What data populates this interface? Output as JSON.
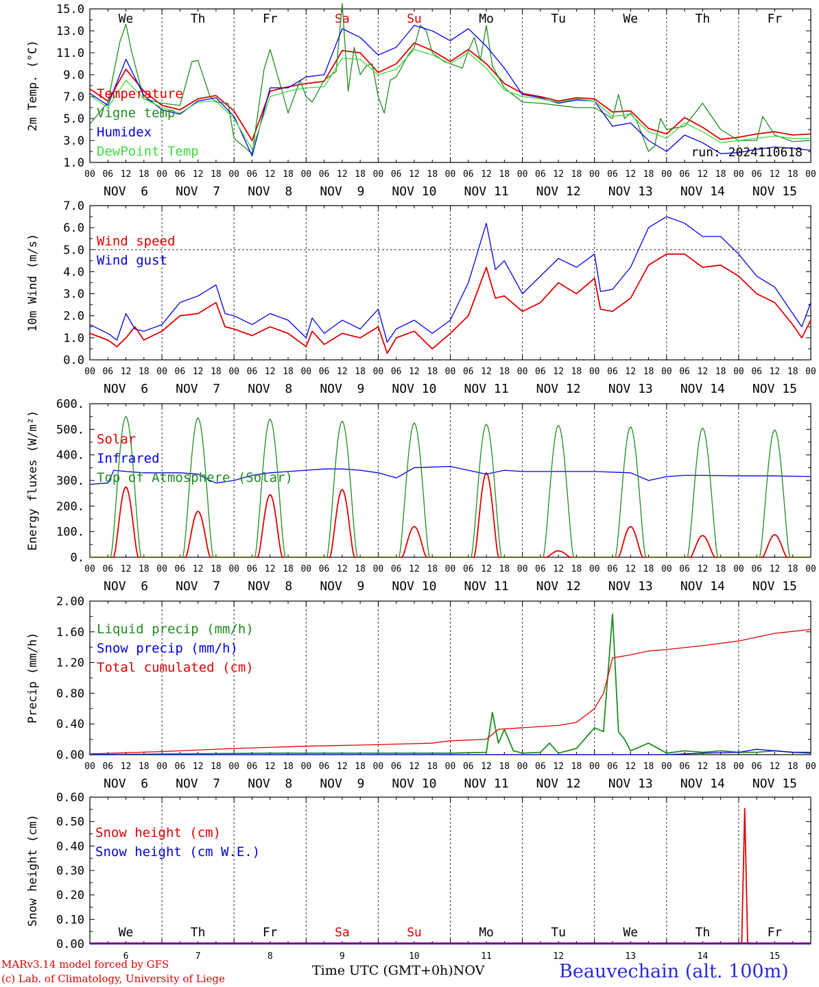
{
  "colors": {
    "red": "#e00000",
    "green": "#1e8c1e",
    "blue": "#0000e0",
    "lightgreen": "#3cdc3c",
    "purple": "#800080"
  },
  "footer": {
    "credit_line1": "MARv3.14 model forced by GFS",
    "credit_line2": "(c) Lab. of Climatology, University of Liege",
    "x_title": "Time UTC (GMT+0h)",
    "month": "NOV",
    "station": "Beauvechain (alt. 100m)"
  },
  "chart_data": [
    {
      "type": "line",
      "ylabel": "2m Temp. (°C)",
      "ylim": [
        1.0,
        15.0
      ],
      "yticks": [
        "1.0",
        "3.0",
        "5.0",
        "7.0",
        "9.0",
        "11.0",
        "13.0",
        "15.0"
      ],
      "weekdays": [
        "We",
        "Th",
        "Fr",
        "Sa",
        "Su",
        "Mo",
        "Tu",
        "We",
        "Th",
        "Fr"
      ],
      "weekend_days": [
        "Sa",
        "Su"
      ],
      "date_labels": [
        "NOV  6",
        "NOV  7",
        "NOV  8",
        "NOV  9",
        "NOV 10",
        "NOV 11",
        "NOV 12",
        "NOV 13",
        "NOV 14",
        "NOV 15"
      ],
      "hour_labels": [
        "00",
        "06",
        "12",
        "18"
      ],
      "x_start": "2024-11-06 00 UTC",
      "x_end": "2024-11-16 00 UTC",
      "annotation": "run: 2024110618",
      "grid": "vertical dotted lines at day boundaries",
      "legend": "top-left",
      "series": [
        {
          "name": "Temperature",
          "color": "red",
          "x_hours": [
            0,
            6,
            12,
            18,
            24,
            30,
            36,
            42,
            48,
            54,
            60,
            66,
            72,
            78,
            84,
            90,
            96,
            102,
            108,
            114,
            120,
            126,
            132,
            138,
            144,
            150,
            156,
            162,
            168,
            174,
            180,
            186,
            192,
            198,
            204,
            210,
            216,
            222,
            228,
            234,
            240
          ],
          "values": [
            7.7,
            6.6,
            9.5,
            7.5,
            6.2,
            5.8,
            6.8,
            7.1,
            5.7,
            3.0,
            7.5,
            7.9,
            8.2,
            8.4,
            11.2,
            11.0,
            9.2,
            10.0,
            11.9,
            11.2,
            10.2,
            11.3,
            10.0,
            8.2,
            7.3,
            7.0,
            6.6,
            6.9,
            6.8,
            5.6,
            5.7,
            4.1,
            3.6,
            5.1,
            4.2,
            3.1,
            3.3,
            3.6,
            3.8,
            3.5,
            3.6
          ]
        },
        {
          "name": "Vigne temp",
          "color": "green",
          "x_hours": [
            0,
            6,
            10,
            12,
            14,
            18,
            24,
            30,
            34,
            36,
            40,
            42,
            46,
            48,
            54,
            58,
            60,
            64,
            66,
            70,
            72,
            74,
            78,
            82,
            84,
            86,
            88,
            90,
            92,
            94,
            96,
            98,
            100,
            102,
            106,
            108,
            110,
            112,
            114,
            118,
            120,
            124,
            126,
            128,
            130,
            132,
            134,
            138,
            144,
            150,
            156,
            162,
            168,
            174,
            176,
            178,
            180,
            182,
            186,
            188,
            190,
            192,
            198,
            204,
            210,
            216,
            222,
            224,
            228,
            234,
            240
          ],
          "values": [
            4.5,
            6.5,
            12.0,
            13.6,
            11.0,
            6.8,
            6.4,
            6.2,
            10.2,
            10.3,
            7.0,
            6.5,
            6.4,
            3.2,
            1.8,
            9.5,
            11.3,
            7.5,
            5.5,
            8.5,
            7.0,
            6.5,
            8.5,
            9.3,
            15.5,
            7.5,
            11.5,
            9.0,
            9.8,
            10.0,
            7.0,
            5.5,
            8.5,
            8.8,
            10.8,
            11.5,
            13.5,
            13.0,
            11.0,
            10.2,
            10.0,
            9.6,
            11.2,
            12.4,
            10.3,
            13.5,
            9.8,
            7.8,
            6.5,
            6.4,
            6.2,
            6.0,
            6.0,
            5.0,
            7.2,
            5.0,
            5.5,
            4.8,
            2.0,
            2.5,
            5.0,
            4.0,
            4.3,
            6.4,
            4.0,
            3.0,
            3.0,
            5.2,
            3.5,
            2.9,
            3.0
          ]
        },
        {
          "name": "Humidex",
          "color": "blue",
          "x_hours": [
            0,
            6,
            12,
            18,
            24,
            30,
            36,
            42,
            48,
            54,
            60,
            66,
            72,
            78,
            84,
            90,
            96,
            102,
            108,
            114,
            120,
            126,
            132,
            138,
            144,
            150,
            156,
            162,
            168,
            174,
            180,
            186,
            192,
            198,
            204,
            210,
            216,
            222,
            228,
            234,
            240
          ],
          "values": [
            7.3,
            6.2,
            10.4,
            7.1,
            5.8,
            5.4,
            6.6,
            6.9,
            5.2,
            1.6,
            7.8,
            7.8,
            8.8,
            9.0,
            13.2,
            12.4,
            10.8,
            11.5,
            13.5,
            13.0,
            12.1,
            13.2,
            11.6,
            9.6,
            7.2,
            6.9,
            6.4,
            6.7,
            6.6,
            4.3,
            4.6,
            3.0,
            2.0,
            3.5,
            2.8,
            1.8,
            1.9,
            2.2,
            2.4,
            2.3,
            2.1
          ]
        },
        {
          "name": "DewPoint Temp",
          "color": "lightgreen",
          "x_hours": [
            0,
            6,
            12,
            18,
            24,
            30,
            36,
            42,
            48,
            54,
            60,
            66,
            72,
            78,
            84,
            90,
            96,
            102,
            108,
            114,
            120,
            126,
            132,
            138,
            144,
            150,
            156,
            162,
            168,
            174,
            180,
            186,
            192,
            198,
            204,
            210,
            216,
            222,
            228,
            234,
            240
          ],
          "values": [
            7.1,
            6.0,
            8.5,
            6.8,
            6.0,
            5.5,
            6.5,
            6.6,
            5.0,
            2.2,
            7.0,
            7.5,
            7.8,
            7.9,
            10.5,
            10.4,
            9.0,
            9.5,
            11.3,
            10.8,
            10.0,
            11.0,
            9.6,
            7.6,
            7.0,
            6.8,
            6.5,
            6.8,
            6.6,
            5.2,
            5.4,
            3.8,
            3.2,
            4.6,
            3.8,
            2.8,
            3.0,
            3.2,
            3.4,
            3.2,
            3.2
          ]
        }
      ]
    },
    {
      "type": "line",
      "ylabel": "10m Wind (m/s)",
      "ylim": [
        0.0,
        7.0
      ],
      "yticks": [
        "0.0",
        "1.0",
        "2.0",
        "3.0",
        "4.0",
        "5.0",
        "6.0",
        "7.0"
      ],
      "date_labels": [
        "NOV  6",
        "NOV  7",
        "NOV  8",
        "NOV  9",
        "NOV 10",
        "NOV 11",
        "NOV 12",
        "NOV 13",
        "NOV 14",
        "NOV 15"
      ],
      "hour_labels": [
        "00",
        "06",
        "12",
        "18"
      ],
      "reference_line": 5.0,
      "legend": "top-left",
      "series": [
        {
          "name": "Wind speed",
          "color": "red",
          "x_hours": [
            0,
            6,
            9,
            12,
            15,
            18,
            24,
            30,
            36,
            42,
            45,
            48,
            54,
            60,
            66,
            72,
            74,
            78,
            84,
            90,
            96,
            99,
            102,
            108,
            114,
            120,
            126,
            132,
            135,
            138,
            144,
            150,
            156,
            162,
            168,
            170,
            174,
            180,
            186,
            192,
            198,
            204,
            210,
            216,
            222,
            228,
            234,
            237,
            240
          ],
          "values": [
            1.2,
            0.9,
            0.6,
            1.0,
            1.5,
            0.9,
            1.3,
            2.0,
            2.1,
            2.6,
            1.5,
            1.4,
            1.1,
            1.5,
            1.2,
            0.6,
            1.3,
            0.7,
            1.2,
            1.0,
            1.5,
            0.3,
            1.0,
            1.3,
            0.5,
            1.2,
            2.0,
            4.2,
            2.8,
            2.9,
            2.2,
            2.6,
            3.5,
            3.0,
            3.7,
            2.3,
            2.2,
            2.8,
            4.3,
            4.8,
            4.8,
            4.2,
            4.3,
            3.8,
            3.0,
            2.6,
            1.6,
            1.0,
            1.8
          ]
        },
        {
          "name": "Wind gust",
          "color": "blue",
          "x_hours": [
            0,
            6,
            9,
            12,
            15,
            18,
            24,
            30,
            36,
            42,
            45,
            48,
            54,
            60,
            66,
            72,
            74,
            78,
            84,
            90,
            96,
            99,
            102,
            108,
            114,
            120,
            126,
            132,
            135,
            138,
            144,
            150,
            156,
            162,
            168,
            170,
            174,
            180,
            186,
            192,
            198,
            204,
            210,
            216,
            222,
            228,
            234,
            237,
            240
          ],
          "values": [
            1.6,
            1.2,
            0.9,
            2.1,
            1.4,
            1.3,
            1.6,
            2.6,
            2.9,
            3.4,
            2.1,
            2.0,
            1.6,
            2.1,
            1.8,
            1.0,
            1.9,
            1.2,
            1.8,
            1.4,
            2.3,
            0.8,
            1.4,
            1.8,
            1.2,
            1.8,
            3.5,
            6.2,
            4.1,
            4.5,
            3.0,
            3.8,
            4.6,
            4.2,
            4.8,
            3.1,
            3.2,
            4.2,
            6.0,
            6.5,
            6.2,
            5.6,
            5.6,
            4.8,
            3.8,
            3.3,
            2.1,
            1.5,
            2.6
          ]
        }
      ]
    },
    {
      "type": "line",
      "ylabel": "Energy fluxes (W/m²)",
      "ylim": [
        0,
        600
      ],
      "yticks": [
        "0.",
        "100.",
        "200.",
        "300.",
        "400.",
        "500.",
        "600."
      ],
      "date_labels": [
        "NOV  6",
        "NOV  7",
        "NOV  8",
        "NOV  9",
        "NOV 10",
        "NOV 11",
        "NOV 12",
        "NOV 13",
        "NOV 14",
        "NOV 15"
      ],
      "hour_labels": [
        "00",
        "06",
        "12",
        "18"
      ],
      "legend": "top-left",
      "series": [
        {
          "name": "Solar",
          "color": "red",
          "daily_peak": [
            275,
            180,
            245,
            265,
            120,
            330,
            25,
            120,
            85,
            88
          ]
        },
        {
          "name": "Infrared",
          "color": "blue",
          "x_hours": [
            0,
            6,
            8,
            12,
            18,
            24,
            30,
            36,
            40,
            42,
            48,
            54,
            60,
            66,
            72,
            78,
            84,
            90,
            96,
            102,
            108,
            120,
            132,
            138,
            144,
            156,
            168,
            180,
            186,
            192,
            198,
            204,
            216,
            228,
            240
          ],
          "values": [
            285,
            290,
            340,
            335,
            330,
            330,
            330,
            325,
            300,
            290,
            300,
            320,
            330,
            335,
            340,
            345,
            345,
            340,
            330,
            310,
            350,
            355,
            325,
            340,
            335,
            335,
            335,
            330,
            300,
            315,
            320,
            320,
            318,
            318,
            315
          ]
        },
        {
          "name": "Top of Atmosphere (Solar)",
          "color": "green",
          "daily_peak": [
            550,
            545,
            540,
            532,
            525,
            520,
            515,
            510,
            505,
            498
          ]
        }
      ]
    },
    {
      "type": "line",
      "ylabel": "Precip (mm/h)",
      "ylim": [
        0.0,
        2.0
      ],
      "yticks": [
        "0.00",
        "0.40",
        "0.80",
        "1.20",
        "1.60",
        "2.00"
      ],
      "date_labels": [
        "NOV  6",
        "NOV  7",
        "NOV  8",
        "NOV  9",
        "NOV 10",
        "NOV 11",
        "NOV 12",
        "NOV 13",
        "NOV 14",
        "NOV 15"
      ],
      "hour_labels": [
        "00",
        "06",
        "12",
        "18"
      ],
      "legend": "top-left",
      "series": [
        {
          "name": "Liquid precip (mm/h)",
          "color": "green",
          "x_hours": [
            0,
            60,
            120,
            132,
            134,
            136,
            138,
            141,
            144,
            150,
            153,
            156,
            162,
            168,
            171,
            174,
            176,
            178,
            180,
            186,
            192,
            198,
            204,
            210,
            216,
            222,
            228,
            234,
            240
          ],
          "values": [
            0,
            0.02,
            0.02,
            0.03,
            0.55,
            0.15,
            0.33,
            0.05,
            0.02,
            0.03,
            0.15,
            0.02,
            0.08,
            0.35,
            0.3,
            1.83,
            0.3,
            0.2,
            0.05,
            0.15,
            0.02,
            0.05,
            0.03,
            0.05,
            0.03,
            0.03,
            0.05,
            0.03,
            0.03
          ]
        },
        {
          "name": "Snow precip (mm/h)",
          "color": "blue",
          "x_hours": [
            0,
            192,
            204,
            216,
            222,
            228,
            234,
            240
          ],
          "values": [
            0,
            0,
            0.02,
            0.03,
            0.07,
            0.05,
            0.03,
            0.02
          ]
        },
        {
          "name": "Total cumulated (cm)",
          "color": "red",
          "x_hours": [
            0,
            24,
            48,
            72,
            96,
            114,
            120,
            132,
            136,
            144,
            156,
            162,
            168,
            171,
            173,
            174,
            180,
            186,
            192,
            204,
            216,
            228,
            240
          ],
          "values": [
            0.01,
            0.04,
            0.08,
            0.11,
            0.13,
            0.15,
            0.18,
            0.2,
            0.33,
            0.35,
            0.38,
            0.42,
            0.6,
            0.8,
            1.1,
            1.26,
            1.3,
            1.35,
            1.37,
            1.42,
            1.48,
            1.58,
            1.63
          ]
        }
      ]
    },
    {
      "type": "line",
      "ylabel": "Snow height (cm)",
      "ylim": [
        0.0,
        0.65
      ],
      "yticks": [
        "0.00",
        "0.10",
        "0.20",
        "0.30",
        "0.40",
        "0.50",
        "0.60"
      ],
      "weekdays": [
        "We",
        "Th",
        "Fr",
        "Sa",
        "Su",
        "Mo",
        "Tu",
        "We",
        "Th",
        "Fr"
      ],
      "weekend_days": [
        "Sa",
        "Su"
      ],
      "day_numbers": [
        "6",
        "7",
        "8",
        "9",
        "10",
        "11",
        "12",
        "13",
        "14",
        "15"
      ],
      "legend": "top-left",
      "series": [
        {
          "name": "Snow height (cm)",
          "color": "red",
          "x_hours": [
            0,
            217,
            218,
            219,
            240
          ],
          "values": [
            0,
            0,
            0.6,
            0,
            0
          ]
        },
        {
          "name": "Snow height (cm W.E.)",
          "color": "blue",
          "x_hours": [
            0,
            240
          ],
          "values": [
            0,
            0
          ]
        }
      ]
    }
  ]
}
